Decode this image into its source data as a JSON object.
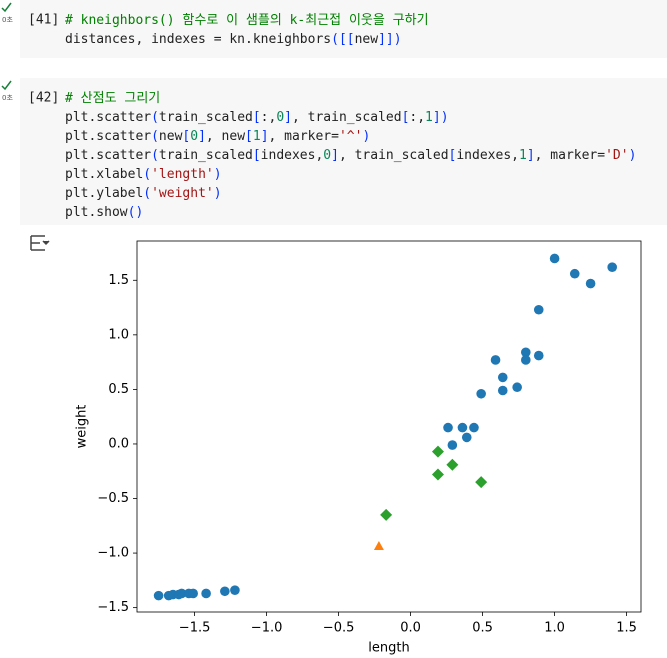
{
  "cells": [
    {
      "exec_time": "0초",
      "count": "[41]",
      "lines": [
        "# kneighbors() 함수로 이 샘플의 k-최근접 이웃을 구하기",
        "distances, indexes = kn.kneighbors([[new]])"
      ]
    },
    {
      "exec_time": "0초",
      "count": "[42]",
      "lines": [
        "# 산점도 그리기",
        "plt.scatter(train_scaled[:,0], train_scaled[:,1])",
        "plt.scatter(new[0], new[1], marker='^')",
        "plt.scatter(train_scaled[indexes,0], train_scaled[indexes,1], marker='D')",
        "plt.xlabel('length')",
        "plt.ylabel('weight')",
        "plt.show()"
      ]
    }
  ],
  "chart_data": {
    "type": "scatter",
    "xlabel": "length",
    "ylabel": "weight",
    "xlim": [
      -1.9,
      1.6
    ],
    "ylim": [
      -1.54,
      1.86
    ],
    "xticks": [
      {
        "value": -1.5,
        "label": "−1.5"
      },
      {
        "value": -1,
        "label": "−1.0"
      },
      {
        "value": -0.5,
        "label": "−0.5"
      },
      {
        "value": 0,
        "label": "0.0"
      },
      0.5,
      {
        "value": 1,
        "label": "1.0"
      },
      1.5
    ],
    "yticks": [
      {
        "value": -1.5,
        "label": "−1.5"
      },
      {
        "value": -1,
        "label": "−1.0"
      },
      {
        "value": -0.5,
        "label": "−0.5"
      },
      {
        "value": 0,
        "label": "0.0"
      },
      0.5,
      {
        "value": 1,
        "label": "1.0"
      },
      1.5
    ],
    "series": [
      {
        "color": "#1f77b4",
        "marker": "o",
        "x": [
          -1.75,
          -1.68,
          -1.65,
          -1.61,
          -1.59,
          -1.54,
          -1.51,
          -1.42,
          -1.29,
          -1.22,
          0.26,
          0.29,
          0.36,
          0.39,
          0.44,
          0.49,
          0.59,
          0.64,
          0.64,
          0.74,
          0.8,
          0.8,
          0.89,
          0.89,
          1.0,
          1.14,
          1.25,
          1.4
        ],
        "values": [
          -1.39,
          -1.39,
          -1.38,
          -1.38,
          -1.37,
          -1.37,
          -1.37,
          -1.37,
          -1.35,
          -1.34,
          0.15,
          -0.01,
          0.15,
          0.06,
          0.15,
          0.46,
          0.77,
          0.61,
          0.49,
          0.52,
          0.84,
          0.77,
          1.23,
          0.81,
          1.7,
          1.56,
          1.47,
          1.62
        ]
      },
      {
        "color": "#ff7f0e",
        "marker": "^",
        "x": [
          -0.22
        ],
        "values": [
          -0.94
        ]
      },
      {
        "color": "#2ca02c",
        "marker": "D",
        "x": [
          -0.17,
          0.19,
          0.19,
          0.29,
          0.49
        ],
        "values": [
          -0.65,
          -0.07,
          -0.28,
          -0.19,
          -0.35
        ]
      }
    ]
  }
}
